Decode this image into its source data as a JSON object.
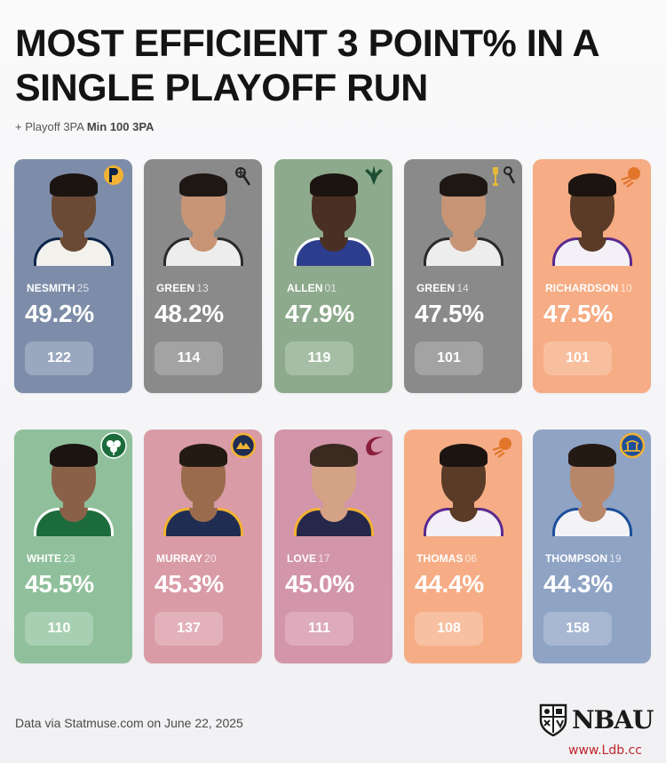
{
  "title": "MOST EFFICIENT 3 POINT% IN A SINGLE PLAYOFF RUN",
  "subtitle": {
    "prefix": "+ Playoff 3PA ",
    "emphasis": "Min 100 3PA"
  },
  "players": [
    {
      "name": "NESMITH",
      "number": "25",
      "pct": "49.2%",
      "attempts": "122",
      "team_logo": "pacers-logo",
      "card_color": "#7d8da9",
      "pill_color": "#9aa8bf",
      "jersey_color": "#f2f1ec",
      "accent": "#0b2447"
    },
    {
      "name": "GREEN",
      "number": "13",
      "pct": "48.2%",
      "attempts": "114",
      "team_logo": "spurs-logo",
      "card_color": "#8a8a8a",
      "pill_color": "#a3a3a3",
      "jersey_color": "#ededed",
      "accent": "#2a2a2a"
    },
    {
      "name": "ALLEN",
      "number": "01",
      "pct": "47.9%",
      "attempts": "119",
      "team_logo": "bucks-logo",
      "card_color": "#8daa8d",
      "pill_color": "#a6bea5",
      "jersey_color": "#2d3d8e",
      "accent": "#ffffff"
    },
    {
      "name": "GREEN",
      "number": "14",
      "pct": "47.5%",
      "attempts": "101",
      "team_logo": "spurs-championship-logo",
      "card_color": "#8a8a8a",
      "pill_color": "#a3a3a3",
      "jersey_color": "#ededed",
      "accent": "#2a2a2a"
    },
    {
      "name": "RICHARDSON",
      "number": "10",
      "pct": "47.5%",
      "attempts": "101",
      "team_logo": "suns-logo",
      "card_color": "#f6ac84",
      "pill_color": "#f7bf9e",
      "jersey_color": "#f3f1f7",
      "accent": "#5b2a8e"
    },
    {
      "name": "WHITE",
      "number": "23",
      "pct": "45.5%",
      "attempts": "110",
      "team_logo": "celtics-logo",
      "card_color": "#8fc09b",
      "pill_color": "#a8cfb2",
      "jersey_color": "#1c6b3c",
      "accent": "#ffffff"
    },
    {
      "name": "MURRAY",
      "number": "20",
      "pct": "45.3%",
      "attempts": "137",
      "team_logo": "nuggets-logo",
      "card_color": "#d99ba6",
      "pill_color": "#e2b1b9",
      "jersey_color": "#1f2d52",
      "accent": "#f2b233"
    },
    {
      "name": "LOVE",
      "number": "17",
      "pct": "45.0%",
      "attempts": "111",
      "team_logo": "cavaliers-logo",
      "card_color": "#d395a9",
      "pill_color": "#ddabbb",
      "jersey_color": "#25284a",
      "accent": "#f2b233"
    },
    {
      "name": "THOMAS",
      "number": "06",
      "pct": "44.4%",
      "attempts": "108",
      "team_logo": "suns-logo",
      "card_color": "#f6ad86",
      "pill_color": "#f7c0a0",
      "jersey_color": "#f3f1f7",
      "accent": "#5b2a8e"
    },
    {
      "name": "THOMPSON",
      "number": "19",
      "pct": "44.3%",
      "attempts": "158",
      "team_logo": "warriors-logo",
      "card_color": "#8fa3c4",
      "pill_color": "#a8b8d2",
      "jersey_color": "#f3f3f6",
      "accent": "#1d4f9a"
    }
  ],
  "footer": "Data via Statmuse.com on June 22, 2025",
  "brand": "NBAU",
  "watermark": "www.Ldb.cc"
}
